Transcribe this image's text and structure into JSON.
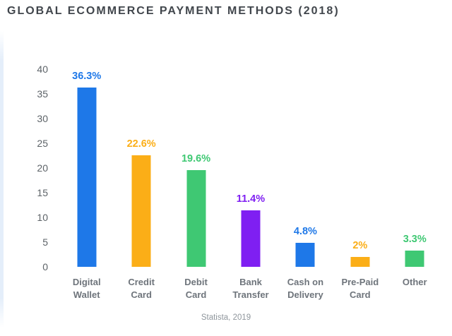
{
  "page": {
    "title": "GLOBAL ECOMMERCE PAYMENT METHODS (2018)",
    "source": "Statista, 2019"
  },
  "colors": {
    "blue": "#1E78E8",
    "orange": "#FBAE17",
    "green": "#3FC873",
    "purple": "#7F1FF2",
    "title_text": "#41464C",
    "axis_text": "#5D6368",
    "category_text": "#6E747B",
    "source_text": "#8F969C",
    "left_strip": "#E4EEFA"
  },
  "chart_data": {
    "type": "bar",
    "title": "GLOBAL ECOMMERCE PAYMENT METHODS (2018)",
    "categories": [
      "Digital Wallet",
      "Credit Card",
      "Debit Card",
      "Bank Transfer",
      "Cash on Delivery",
      "Pre-Paid Card",
      "Other"
    ],
    "category_lines": [
      [
        "Digital",
        "Wallet"
      ],
      [
        "Credit",
        "Card"
      ],
      [
        "Debit",
        "Card"
      ],
      [
        "Bank",
        "Transfer"
      ],
      [
        "Cash on",
        "Delivery"
      ],
      [
        "Pre-Paid",
        "Card"
      ],
      [
        "Other"
      ]
    ],
    "values": [
      36.3,
      22.6,
      19.6,
      11.4,
      4.8,
      2,
      3.3
    ],
    "value_labels": [
      "36.3%",
      "22.6%",
      "19.6%",
      "11.4%",
      "4.8%",
      "2%",
      "3.3%"
    ],
    "bar_colors": [
      "#1E78E8",
      "#FBAE17",
      "#3FC873",
      "#7F1FF2",
      "#1E78E8",
      "#FBAE17",
      "#3FC873"
    ],
    "y_ticks": [
      40,
      35,
      30,
      25,
      20,
      15,
      10,
      5,
      0
    ],
    "ylim": [
      0,
      40
    ],
    "xlabel": "",
    "ylabel": "",
    "grid": false,
    "legend": "none",
    "source": "Statista, 2019"
  }
}
